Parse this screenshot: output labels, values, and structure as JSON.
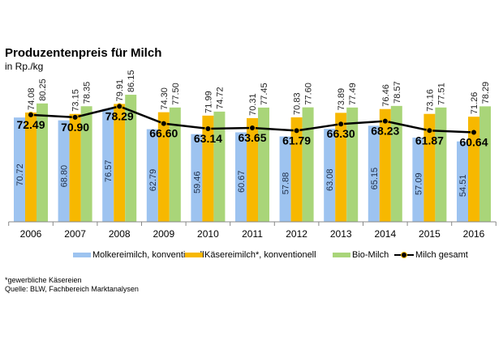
{
  "chart_data": {
    "type": "bar",
    "title": "Produzentenpreis für Milch",
    "subtitle": "in Rp./kg",
    "xlabel": "",
    "ylabel": "",
    "ylim": [
      0,
      90
    ],
    "grid": false,
    "legend_position": "bottom",
    "categories": [
      "2006",
      "2007",
      "2008",
      "2009",
      "2010",
      "2011",
      "2012",
      "2013",
      "2014",
      "2015",
      "2016"
    ],
    "series": [
      {
        "name": "Molkereimilch, konventionell",
        "type": "bar",
        "color": "#9dc3f0",
        "values": [
          70.72,
          68.8,
          76.57,
          62.79,
          59.46,
          60.67,
          57.88,
          63.08,
          65.15,
          57.09,
          54.51
        ],
        "labels": [
          "70.72",
          "68.80",
          "76.57",
          "62.79",
          "59.46",
          "60.67",
          "57.88",
          "63.08",
          "65.15",
          "57.09",
          "54.51"
        ]
      },
      {
        "name": "Käsereimilch*, konventionell",
        "type": "bar",
        "color": "#f7b800",
        "values": [
          74.08,
          73.15,
          79.91,
          74.3,
          71.99,
          70.31,
          70.83,
          73.89,
          76.46,
          73.16,
          71.26
        ],
        "labels": [
          "74.08",
          "73.15",
          "79.91",
          "74.30",
          "71.99",
          "70.31",
          "70.83",
          "73.89",
          "76.46",
          "73.16",
          "71.26"
        ]
      },
      {
        "name": "Bio-Milch",
        "type": "bar",
        "color": "#a9d579",
        "values": [
          80.25,
          78.35,
          86.15,
          77.5,
          74.72,
          77.45,
          77.6,
          77.49,
          78.57,
          77.51,
          78.29
        ],
        "labels": [
          "80.25",
          "78.35",
          "86.15",
          "77.50",
          "74.72",
          "77.45",
          "77.60",
          "77.49",
          "78.57",
          "77.51",
          "78.29"
        ]
      },
      {
        "name": "Milch gesamt",
        "type": "line",
        "color": "#000000",
        "values": [
          72.49,
          70.9,
          78.29,
          66.6,
          63.14,
          63.65,
          61.79,
          66.3,
          68.23,
          61.87,
          60.64
        ],
        "labels": [
          "72.49",
          "70.90",
          "78.29",
          "66.60",
          "63.14",
          "63.65",
          "61.79",
          "66.30",
          "68.23",
          "61.87",
          "60.64"
        ]
      }
    ]
  },
  "footnotes": {
    "asterisk_note": "*gewerbliche Käsereien",
    "source": "Quelle: BLW, Fachbereich Marktanalysen"
  }
}
